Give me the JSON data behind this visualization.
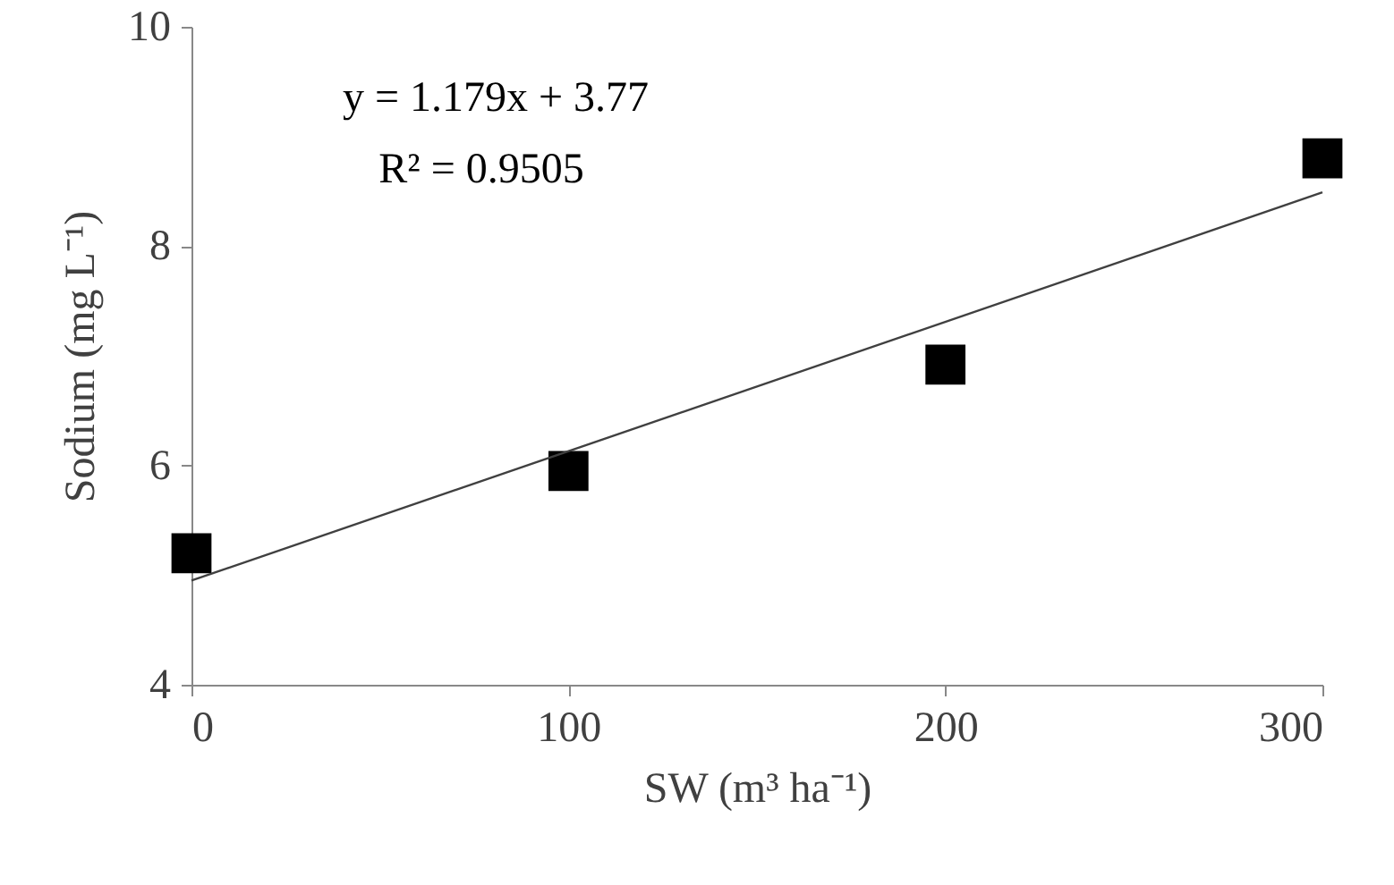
{
  "chart_data": {
    "type": "scatter",
    "xlabel": "SW (m³ ha⁻¹)",
    "ylabel": "Sodium (mg L⁻¹)",
    "xlim": [
      0,
      300
    ],
    "xticks": [
      0,
      100,
      200,
      300
    ],
    "ylim": [
      4,
      10
    ],
    "yticks": [
      4,
      6,
      8,
      10
    ],
    "grid": false,
    "series": [
      {
        "color": "#000000",
        "marker": "square",
        "x": [
          0,
          100,
          200,
          300
        ],
        "values": [
          5.2,
          5.95,
          6.92,
          8.8
        ]
      },
      {
        "type": "line",
        "marker": "none",
        "color": "#404040",
        "line_style": "solid",
        "x": [
          0,
          300
        ],
        "values": [
          4.95,
          8.49
        ]
      }
    ],
    "annotations": [
      "y = 1.179x + 3.77",
      "R² = 0.9505"
    ]
  }
}
